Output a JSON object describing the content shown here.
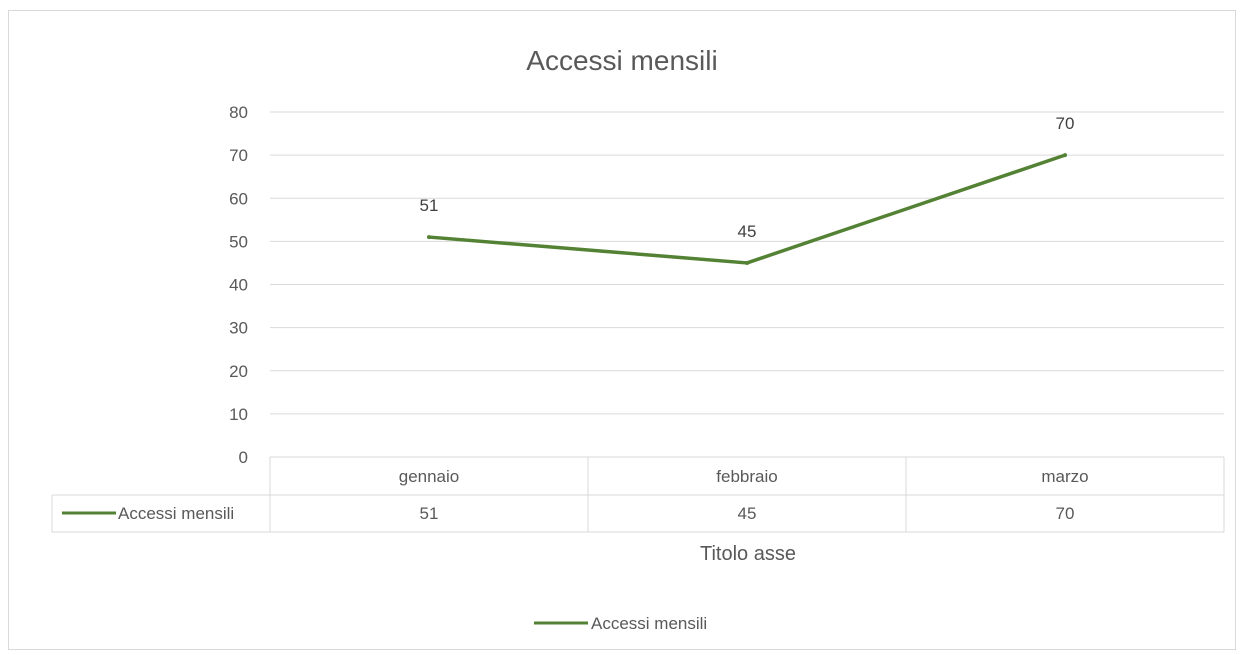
{
  "chart_data": {
    "type": "line",
    "title": "Accessi mensili",
    "xlabel": "Titolo asse",
    "ylabel": "",
    "categories": [
      "gennaio",
      "febbraio",
      "marzo"
    ],
    "series": [
      {
        "name": "Accessi mensili",
        "values": [
          51,
          45,
          70
        ],
        "color": "#548235"
      }
    ],
    "ylim": [
      0,
      80
    ],
    "yticks": [
      0,
      10,
      20,
      30,
      40,
      50,
      60,
      70,
      80
    ],
    "grid": true,
    "data_labels": true,
    "data_table": true,
    "legend": "bottom"
  }
}
